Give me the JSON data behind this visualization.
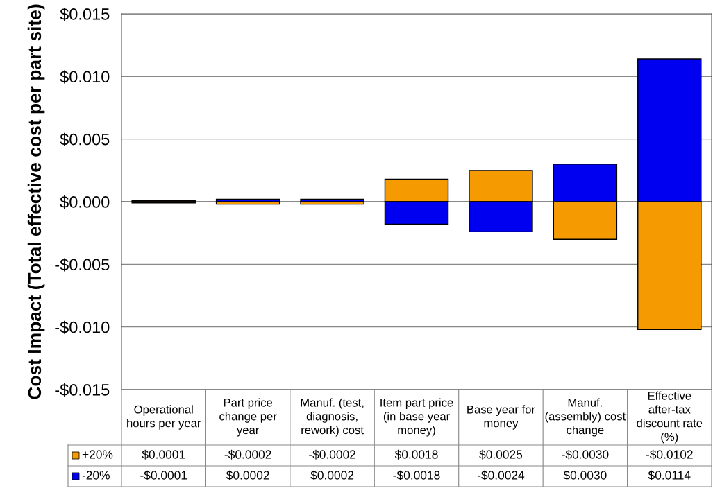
{
  "chart_data": {
    "type": "bar",
    "stacked": true,
    "ylabel": "Cost Impact (Total effective cost per part site)",
    "categories": [
      "Operational hours per year",
      "Part price change per year",
      "Manuf. (test, diagnosis, rework) cost",
      "Item part price (in base year money)",
      "Base year for money",
      "Manuf. (assembly) cost change",
      "Effective after-tax discount rate (%)"
    ],
    "series": [
      {
        "name": "+20%",
        "color": "#f59a00",
        "values": [
          0.0001,
          -0.0002,
          -0.0002,
          0.0018,
          0.0025,
          -0.003,
          -0.0102
        ],
        "value_labels": [
          "$0.0001",
          "-$0.0002",
          "-$0.0002",
          "$0.0018",
          "$0.0025",
          "-$0.0030",
          "-$0.0102"
        ]
      },
      {
        "name": "-20%",
        "color": "#0000f0",
        "values": [
          -0.0001,
          0.0002,
          0.0002,
          -0.0018,
          -0.0024,
          0.003,
          0.0114
        ],
        "value_labels": [
          "-$0.0001",
          "$0.0002",
          "$0.0002",
          "-$0.0018",
          "-$0.0024",
          "$0.0030",
          "$0.0114"
        ]
      }
    ],
    "ylim": [
      -0.015,
      0.015
    ],
    "yticks": [
      {
        "value": -0.015,
        "label": "-$0.015"
      },
      {
        "value": -0.01,
        "label": "-$0.010"
      },
      {
        "value": -0.005,
        "label": "-$0.005"
      },
      {
        "value": 0,
        "label": "$0.000"
      },
      {
        "value": 0.005,
        "label": "$0.005"
      },
      {
        "value": 0.01,
        "label": "$0.010"
      },
      {
        "value": 0.015,
        "label": "$0.015"
      }
    ],
    "grid": "y",
    "legend": "bottom"
  }
}
